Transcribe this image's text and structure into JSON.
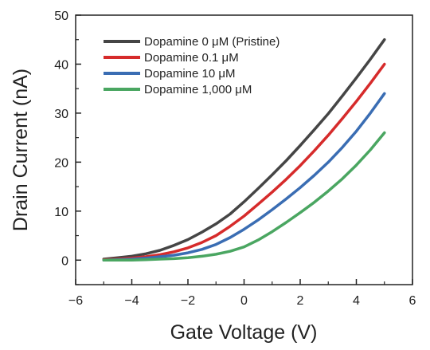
{
  "chart_data": {
    "type": "line",
    "xlabel": "Gate Voltage (V)",
    "ylabel": "Drain Current (nA)",
    "xlim": [
      -6,
      6
    ],
    "ylim": [
      -5,
      50
    ],
    "xticks": [
      -6,
      -4,
      -2,
      0,
      2,
      4,
      6
    ],
    "xtick_labels": [
      "−6",
      "−4",
      "−2",
      "0",
      "2",
      "4",
      "6"
    ],
    "yticks": [
      0,
      10,
      20,
      30,
      40,
      50
    ],
    "ytick_labels": [
      "0",
      "10",
      "20",
      "30",
      "40",
      "50"
    ],
    "grid": false,
    "legend_position": "top-left",
    "x": [
      -5,
      -4.5,
      -4,
      -3.5,
      -3,
      -2.5,
      -2,
      -1.5,
      -1,
      -0.5,
      0,
      0.5,
      1,
      1.5,
      2,
      2.5,
      3,
      3.5,
      4,
      4.5,
      5
    ],
    "series": [
      {
        "name": "Dopamine 0 μM (Pristine)",
        "color": "#454545",
        "values": [
          0.2,
          0.5,
          0.8,
          1.3,
          2.0,
          3.0,
          4.2,
          5.7,
          7.4,
          9.4,
          11.9,
          14.6,
          17.4,
          20.3,
          23.4,
          26.6,
          29.9,
          33.5,
          37.2,
          41.0,
          45.0
        ]
      },
      {
        "name": "Dopamine 0.1 μM",
        "color": "#d62b2b",
        "values": [
          0.1,
          0.2,
          0.4,
          0.7,
          1.1,
          1.7,
          2.5,
          3.6,
          5.0,
          6.9,
          9.0,
          11.4,
          13.9,
          16.5,
          19.3,
          22.3,
          25.5,
          28.9,
          32.4,
          36.1,
          40.0
        ]
      },
      {
        "name": "Dopamine 10 μM",
        "color": "#3a6db3",
        "values": [
          0.0,
          0.1,
          0.2,
          0.4,
          0.7,
          1.0,
          1.5,
          2.2,
          3.2,
          4.6,
          6.3,
          8.2,
          10.3,
          12.5,
          14.8,
          17.3,
          20.0,
          23.0,
          26.3,
          30.0,
          34.0
        ]
      },
      {
        "name": "Dopamine 1,000 μM",
        "color": "#4aa661",
        "values": [
          0.0,
          0.0,
          0.0,
          0.1,
          0.2,
          0.3,
          0.5,
          0.8,
          1.2,
          1.8,
          2.7,
          4.1,
          5.8,
          7.7,
          9.7,
          11.8,
          14.1,
          16.6,
          19.4,
          22.5,
          26.0
        ]
      }
    ]
  }
}
